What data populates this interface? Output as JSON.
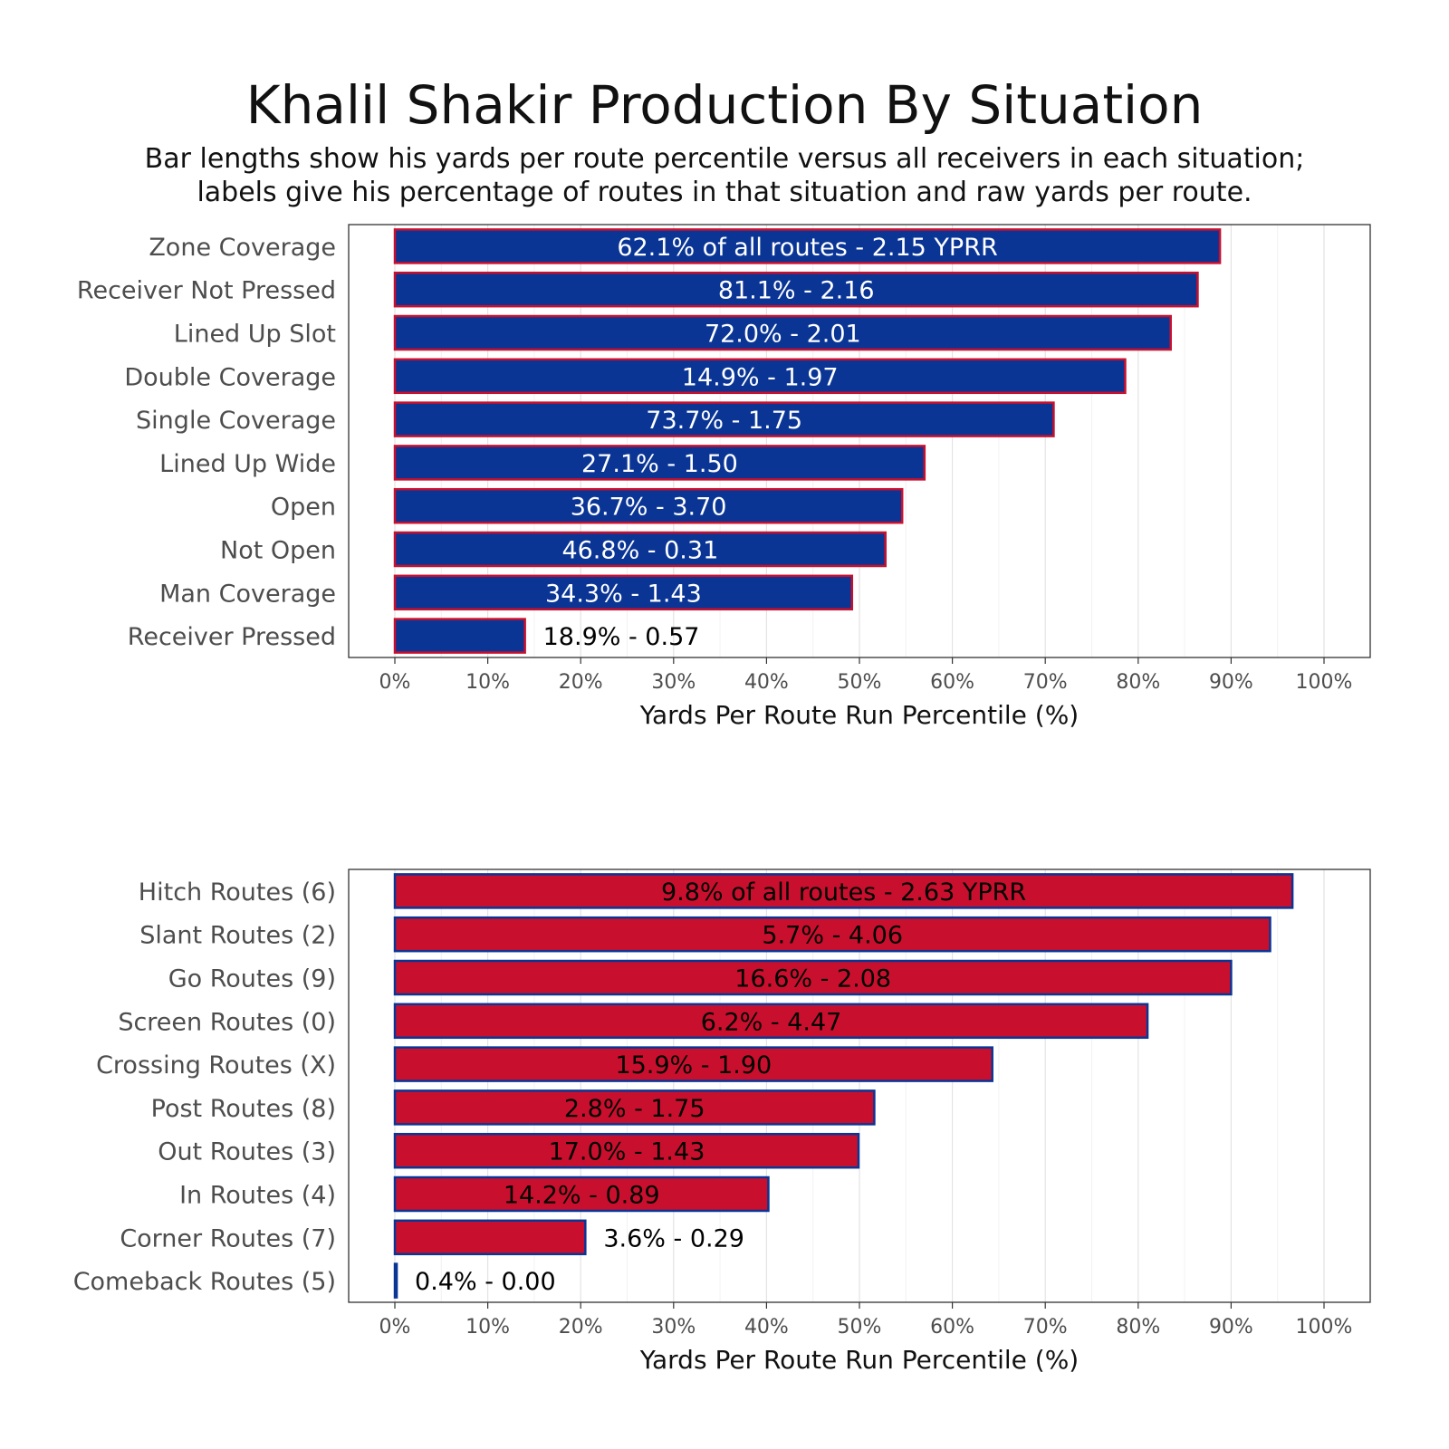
{
  "title": "Khalil Shakir Production By Situation",
  "subtitle_line1": "Bar lengths show his yards per route percentile versus all receivers in each situation;",
  "subtitle_line2": "labels give his percentage of routes in that situation and raw yards per route.",
  "chart_data": [
    {
      "type": "bar",
      "orientation": "horizontal",
      "xlabel": "Yards Per Route Run Percentile (%)",
      "xlim": [
        0,
        100
      ],
      "x_ticks": [
        "0%",
        "10%",
        "20%",
        "30%",
        "40%",
        "50%",
        "60%",
        "70%",
        "80%",
        "90%",
        "100%"
      ],
      "grid": true,
      "colors": {
        "fill": "#0a3595",
        "outline": "#c8102e",
        "label_inside": "#ffffff",
        "label_outside": "#000000"
      },
      "categories": [
        "Zone Coverage",
        "Receiver Not Pressed",
        "Lined Up Slot",
        "Double Coverage",
        "Single Coverage",
        "Lined Up Wide",
        "Open",
        "Not Open",
        "Man Coverage",
        "Receiver Pressed"
      ],
      "values": [
        88.8,
        86.4,
        83.5,
        78.6,
        70.9,
        57.0,
        54.6,
        52.8,
        49.2,
        14.0
      ],
      "labels": [
        "62.1% of all routes - 2.15 YPRR",
        "81.1% - 2.16",
        "72.0% - 2.01",
        "14.9% - 1.97",
        "73.7% - 1.75",
        "27.1% - 1.50",
        "36.7% - 3.70",
        "46.8% - 0.31",
        "34.3% - 1.43",
        "18.9% - 0.57"
      ]
    },
    {
      "type": "bar",
      "orientation": "horizontal",
      "xlabel": "Yards Per Route Run Percentile (%)",
      "xlim": [
        0,
        100
      ],
      "x_ticks": [
        "0%",
        "10%",
        "20%",
        "30%",
        "40%",
        "50%",
        "60%",
        "70%",
        "80%",
        "90%",
        "100%"
      ],
      "grid": true,
      "colors": {
        "fill": "#c8102e",
        "outline": "#0a3595",
        "label_inside": "#000000",
        "label_outside": "#000000"
      },
      "categories": [
        "Hitch Routes (6)",
        "Slant Routes (2)",
        "Go Routes (9)",
        "Screen Routes (0)",
        "Crossing Routes (X)",
        "Post Routes (8)",
        "Out Routes (3)",
        "In Routes (4)",
        "Corner Routes (7)",
        "Comeback Routes (5)"
      ],
      "values": [
        96.6,
        94.2,
        90.0,
        81.0,
        64.3,
        51.6,
        49.9,
        40.2,
        20.5,
        0.2
      ],
      "labels": [
        "9.8% of all routes - 2.63 YPRR",
        "5.7% - 4.06",
        "16.6% - 2.08",
        "6.2% - 4.47",
        "15.9% - 1.90",
        "2.8% - 1.75",
        "17.0% - 1.43",
        "14.2% - 0.89",
        "3.6% - 0.29",
        "0.4% - 0.00"
      ]
    }
  ]
}
